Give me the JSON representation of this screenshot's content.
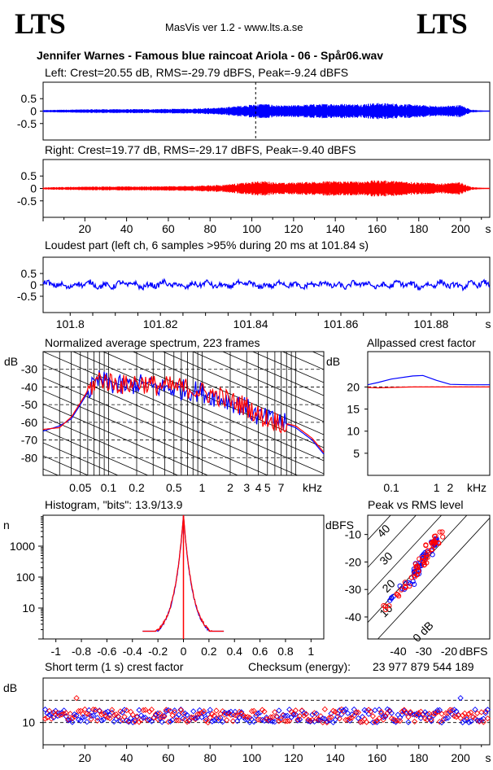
{
  "header": {
    "logo_left": "LTS",
    "logo_right": "LTS",
    "app_line": "MasVis ver 1.2 - www.lts.a.se",
    "track_title": "Jennifer Warnes - Famous blue raincoat Ariola - 06 - Spår06.wav"
  },
  "colors": {
    "left": "#0000ff",
    "right": "#ff0000",
    "axis": "#000000"
  },
  "chart_data": [
    {
      "id": "left_waveform",
      "type": "area",
      "title": "Left: Crest=20.55 dB, RMS=-29.79 dBFS, Peak=-9.24 dBFS",
      "yticks": [
        "0.5",
        "0",
        "-0.5"
      ],
      "ylim": [
        -1,
        1
      ],
      "xlim": [
        0,
        214
      ],
      "marker_x": 101.84,
      "envelope": {
        "x": [
          0,
          10,
          30,
          50,
          70,
          85,
          95,
          105,
          115,
          130,
          140,
          150,
          160,
          170,
          180,
          190,
          200,
          205,
          214
        ],
        "amp": [
          0.04,
          0.06,
          0.08,
          0.08,
          0.1,
          0.14,
          0.22,
          0.3,
          0.22,
          0.28,
          0.3,
          0.28,
          0.33,
          0.3,
          0.25,
          0.2,
          0.25,
          0.06,
          0.0
        ]
      }
    },
    {
      "id": "right_waveform",
      "type": "area",
      "title": "Right: Crest=19.77 dB, RMS=-29.17 dBFS, Peak=-9.40 dBFS",
      "yticks": [
        "0.5",
        "0",
        "-0.5"
      ],
      "ylim": [
        -1,
        1
      ],
      "xlim": [
        0,
        214
      ],
      "xticks": [
        "20",
        "40",
        "60",
        "80",
        "100",
        "120",
        "140",
        "160",
        "180",
        "200",
        "s"
      ],
      "envelope": {
        "x": [
          0,
          10,
          30,
          50,
          70,
          85,
          95,
          105,
          115,
          130,
          140,
          150,
          160,
          170,
          180,
          190,
          200,
          205,
          214
        ],
        "amp": [
          0.04,
          0.06,
          0.08,
          0.08,
          0.1,
          0.14,
          0.22,
          0.3,
          0.22,
          0.28,
          0.3,
          0.28,
          0.33,
          0.3,
          0.25,
          0.2,
          0.25,
          0.06,
          0.0
        ]
      }
    },
    {
      "id": "loudest_part",
      "type": "line",
      "title": "Loudest part (left  ch, 6 samples >95% during 20 ms at 101.84 s)",
      "yticks": [
        "0.5",
        "0",
        "-0.5"
      ],
      "ylim": [
        -1,
        1
      ],
      "xlim": [
        101.794,
        101.893
      ],
      "xticks": [
        "101.8",
        "101.82",
        "101.84",
        "101.86",
        "101.88",
        "s"
      ]
    },
    {
      "id": "avg_spectrum",
      "type": "line",
      "title": "Normalized average spectrum, 223 frames",
      "ylabel": "dB",
      "xlabel": "kHz",
      "yticks": [
        "-30",
        "-40",
        "-50",
        "-60",
        "-70",
        "-80"
      ],
      "ylim": [
        -90,
        -20
      ],
      "xticks": [
        "0.05",
        "0.1",
        "0.2",
        "0.5",
        "1",
        "2",
        "3",
        "4",
        "5",
        "7",
        "kHz"
      ],
      "xlim_khz": [
        0.02,
        20
      ],
      "series": [
        {
          "name": "left",
          "x": [
            0.02,
            0.03,
            0.04,
            0.05,
            0.06,
            0.08,
            0.1,
            0.15,
            0.2,
            0.3,
            0.5,
            0.8,
            1,
            1.5,
            2,
            3,
            4,
            5,
            7,
            10,
            15,
            20
          ],
          "y": [
            -65,
            -62,
            -58,
            -50,
            -43,
            -36,
            -38,
            -40,
            -38,
            -40,
            -41,
            -42,
            -43,
            -46,
            -48,
            -52,
            -57,
            -58,
            -60,
            -63,
            -70,
            -78
          ]
        },
        {
          "name": "right",
          "x": [
            0.02,
            0.03,
            0.04,
            0.05,
            0.06,
            0.08,
            0.1,
            0.15,
            0.2,
            0.3,
            0.5,
            0.8,
            1,
            1.5,
            2,
            3,
            4,
            5,
            7,
            10,
            15,
            20
          ],
          "y": [
            -64,
            -63,
            -57,
            -49,
            -42,
            -35,
            -37,
            -39,
            -37,
            -39,
            -40,
            -41,
            -43,
            -45,
            -48,
            -51,
            -56,
            -58,
            -60,
            -62,
            -69,
            -77
          ]
        }
      ]
    },
    {
      "id": "allpassed_crest",
      "type": "line",
      "title": "Allpassed crest factor",
      "ylabel": "dB",
      "xlabel": "kHz",
      "yticks": [
        "20",
        "15",
        "10",
        "5"
      ],
      "ylim": [
        0,
        28
      ],
      "xticks": [
        "0.1",
        "1",
        "2",
        "kHz"
      ],
      "xlim_khz": [
        0.03,
        15
      ],
      "series": [
        {
          "name": "left",
          "x": [
            0.03,
            0.05,
            0.1,
            0.3,
            0.5,
            1,
            2,
            5,
            15
          ],
          "y": [
            20.5,
            21,
            21.8,
            22.5,
            22.6,
            21.5,
            20.6,
            20.5,
            20.5
          ]
        },
        {
          "name": "right",
          "x": [
            0.03,
            0.05,
            0.1,
            0.3,
            0.5,
            1,
            2,
            5,
            15
          ],
          "y": [
            19.9,
            19.8,
            19.9,
            20.0,
            20.0,
            20.0,
            20.0,
            20.0,
            20.0
          ]
        }
      ]
    },
    {
      "id": "histogram",
      "type": "line",
      "title": "Histogram, \"bits\": 13.9/13.9",
      "ylabel": "n",
      "yticks": [
        "1000",
        "100",
        "10"
      ],
      "ylim_log10": [
        0,
        4
      ],
      "xticks": [
        "-1",
        "-0.8",
        "-0.6",
        "-0.4",
        "-0.2",
        "0",
        "0.2",
        "0.4",
        "0.6",
        "0.8",
        "1"
      ],
      "xlim": [
        -1.1,
        1.1
      ]
    },
    {
      "id": "peak_vs_rms",
      "type": "scatter",
      "title": "Peak vs RMS level",
      "ylabel": "dBFS",
      "xlabel": "dBFS",
      "yticks": [
        "-10",
        "-20",
        "-30",
        "-40"
      ],
      "ylim": [
        -48,
        -3
      ],
      "xticks": [
        "-40",
        "-30",
        "-20",
        "dBFS"
      ],
      "xlim": [
        -52,
        -4
      ],
      "diagonal_labels": [
        "40",
        "30",
        "20",
        "10",
        "0 dB"
      ],
      "series": [
        {
          "name": "left",
          "x": [
            -35,
            -34,
            -32,
            -31,
            -30,
            -29,
            -28,
            -27,
            -26,
            -25,
            -42,
            -38,
            -33
          ],
          "y": [
            -27,
            -24,
            -22,
            -20,
            -19,
            -18,
            -16,
            -14,
            -13,
            -12,
            -34,
            -29,
            -25
          ]
        },
        {
          "name": "right",
          "x": [
            -36,
            -34,
            -33,
            -32,
            -31,
            -30,
            -29,
            -28,
            -27,
            -26,
            -25,
            -24,
            -45,
            -40
          ],
          "y": [
            -28,
            -25,
            -23,
            -22,
            -20,
            -19,
            -17,
            -15,
            -14,
            -13,
            -12,
            -10,
            -36,
            -31
          ]
        }
      ]
    },
    {
      "id": "short_term_crest",
      "type": "scatter",
      "title": "Short term (1 s) crest factor",
      "ylabel": "dB",
      "yticks": [
        "10"
      ],
      "ylim": [
        0,
        30
      ],
      "xticks": [
        "20",
        "40",
        "60",
        "80",
        "100",
        "120",
        "140",
        "160",
        "180",
        "200",
        "s"
      ],
      "xlim": [
        0,
        214
      ]
    }
  ],
  "checksum": {
    "label": "Checksum (energy):",
    "value": "23 977 879 544 189"
  }
}
